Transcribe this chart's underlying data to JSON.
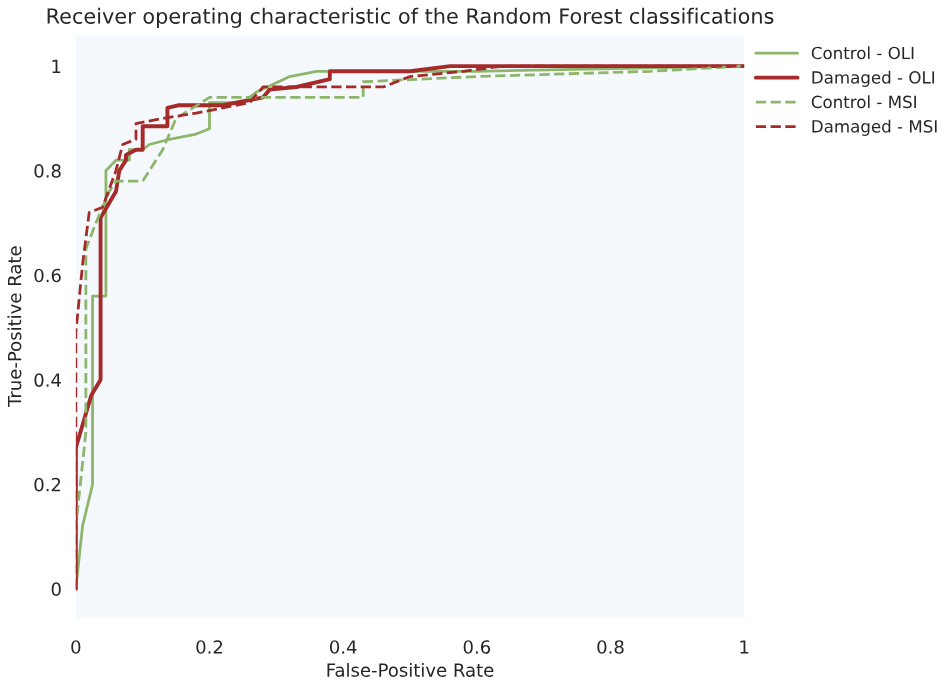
{
  "chart_data": {
    "type": "line",
    "title": "Receiver operating characteristic of the Random Forest classifications",
    "xlabel": "False-Positive Rate",
    "ylabel": "True-Positive Rate",
    "xlim": [
      0,
      1
    ],
    "ylim": [
      -0.055,
      1.06
    ],
    "xticks": [
      0,
      0.2,
      0.4,
      0.6,
      0.8,
      1
    ],
    "yticks": [
      0,
      0.2,
      0.4,
      0.6,
      0.8,
      1
    ],
    "grid": false,
    "legend": "top right",
    "marker": "none",
    "series": [
      {
        "name": "Control - OLI",
        "color": "#8db56b",
        "line_style": "solid",
        "x": [
          0,
          0.01,
          0.025,
          0.025,
          0.045,
          0.045,
          0.06,
          0.08,
          0.08,
          0.1,
          0.11,
          0.14,
          0.18,
          0.2,
          0.2,
          0.25,
          0.27,
          0.32,
          0.36,
          0.6,
          1
        ],
        "values": [
          0,
          0.12,
          0.2,
          0.56,
          0.56,
          0.8,
          0.82,
          0.82,
          0.84,
          0.84,
          0.85,
          0.86,
          0.87,
          0.88,
          0.93,
          0.93,
          0.95,
          0.98,
          0.99,
          0.99,
          1
        ]
      },
      {
        "name": "Damaged - OLI",
        "color": "#a52a2a",
        "line_style": "solid",
        "x": [
          0,
          0,
          0.023,
          0.037,
          0.037,
          0.06,
          0.065,
          0.075,
          0.075,
          0.09,
          0.1,
          0.1,
          0.137,
          0.137,
          0.153,
          0.22,
          0.28,
          0.29,
          0.33,
          0.38,
          0.38,
          0.5,
          0.56,
          1
        ],
        "values": [
          0,
          0.27,
          0.37,
          0.4,
          0.71,
          0.76,
          0.8,
          0.82,
          0.83,
          0.84,
          0.84,
          0.885,
          0.885,
          0.92,
          0.925,
          0.925,
          0.94,
          0.955,
          0.96,
          0.975,
          0.99,
          0.99,
          1,
          1
        ]
      },
      {
        "name": "Control - MSI",
        "color": "#8db56b",
        "line_style": "dashed",
        "x": [
          0,
          0,
          0.015,
          0.015,
          0.03,
          0.05,
          0.06,
          0.1,
          0.13,
          0.15,
          0.2,
          0.43,
          0.43,
          0.6,
          0.86,
          1
        ],
        "values": [
          0,
          0.12,
          0.3,
          0.65,
          0.7,
          0.76,
          0.78,
          0.78,
          0.84,
          0.9,
          0.94,
          0.94,
          0.97,
          0.98,
          0.99,
          1
        ]
      },
      {
        "name": "Damaged - MSI",
        "color": "#a52a2a",
        "line_style": "dashed",
        "x": [
          0,
          0,
          0.01,
          0.02,
          0.04,
          0.06,
          0.07,
          0.09,
          0.09,
          0.13,
          0.18,
          0.26,
          0.28,
          0.46,
          0.5,
          0.58,
          0.64,
          1
        ],
        "values": [
          0,
          0.49,
          0.62,
          0.72,
          0.73,
          0.8,
          0.85,
          0.86,
          0.89,
          0.9,
          0.91,
          0.93,
          0.96,
          0.96,
          0.98,
          0.99,
          1,
          1
        ]
      }
    ]
  }
}
